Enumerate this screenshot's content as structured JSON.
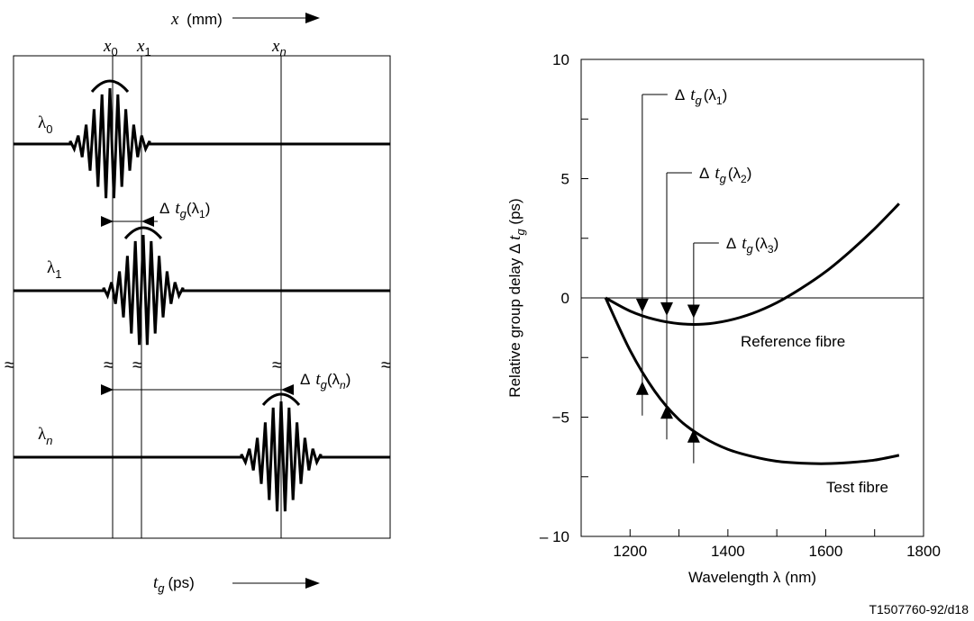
{
  "left_diagram": {
    "x_axis": {
      "var": "x",
      "unit": "(mm)"
    },
    "t_axis": {
      "var": "t",
      "sub": "g",
      "unit": "(ps)"
    },
    "position_labels": [
      {
        "var": "x",
        "sub": "0"
      },
      {
        "var": "x",
        "sub": "1"
      },
      {
        "var": "x",
        "sub": "n"
      }
    ],
    "wavelength_labels": [
      {
        "var": "λ",
        "sub": "0"
      },
      {
        "var": "λ",
        "sub": "1"
      },
      {
        "var": "λ",
        "sub": "n"
      }
    ],
    "delays": [
      {
        "delta": "Δ",
        "var": "t",
        "sub": "g",
        "open": "(λ",
        "lsub": "1",
        "close": ")"
      },
      {
        "delta": "Δ",
        "var": "t",
        "sub": "g",
        "open": "(λ",
        "lsub": "n",
        "close": ")"
      }
    ],
    "break_mark": "≈"
  },
  "chart_data": {
    "type": "line",
    "xlabel": "Wavelength λ  (nm)",
    "ylabel": {
      "main": "Relative group delay  Δ ",
      "var": "t",
      "sub": "g",
      "unit": " (ps)"
    },
    "xlim": [
      1100,
      1800
    ],
    "ylim": [
      -10,
      10
    ],
    "x_ticks": [
      1200,
      1400,
      1600,
      1800
    ],
    "y_ticks": [
      {
        "value": 10,
        "label": "10"
      },
      {
        "value": 5,
        "label": "5"
      },
      {
        "value": 0,
        "label": "0"
      },
      {
        "value": -5,
        "label": "−5"
      },
      {
        "value": -10,
        "label": "– 10"
      }
    ],
    "series": [
      {
        "name": "Reference fibre",
        "x": [
          1150,
          1200,
          1250,
          1300,
          1350,
          1400,
          1450,
          1500,
          1550,
          1600,
          1650,
          1700,
          1750
        ],
        "y": [
          0,
          -0.55,
          -0.9,
          -1.08,
          -1.1,
          -0.95,
          -0.65,
          -0.2,
          0.4,
          1.1,
          1.95,
          2.9,
          3.95
        ]
      },
      {
        "name": "Test fibre",
        "x": [
          1150,
          1200,
          1250,
          1300,
          1350,
          1400,
          1450,
          1500,
          1550,
          1600,
          1650,
          1700,
          1750
        ],
        "y": [
          0,
          -2.2,
          -3.9,
          -5.1,
          -5.85,
          -6.35,
          -6.65,
          -6.85,
          -6.93,
          -6.95,
          -6.9,
          -6.8,
          -6.6
        ]
      }
    ],
    "annotations": [
      {
        "delta": "Δ",
        "var": "t",
        "sub": "g",
        "open": "(λ",
        "lsub": "1",
        "close": ")",
        "x": 1225,
        "ref_y": -0.6,
        "test_y": -3.5
      },
      {
        "delta": "Δ",
        "var": "t",
        "sub": "g",
        "open": "(λ",
        "lsub": "2",
        "close": ")",
        "x": 1275,
        "ref_y": -0.75,
        "test_y": -4.5
      },
      {
        "delta": "Δ",
        "var": "t",
        "sub": "g",
        "open": "(λ",
        "lsub": "3",
        "close": ")",
        "x": 1330,
        "ref_y": -0.85,
        "test_y": -5.5
      }
    ]
  },
  "figure_id": "T1507760-92/d18"
}
